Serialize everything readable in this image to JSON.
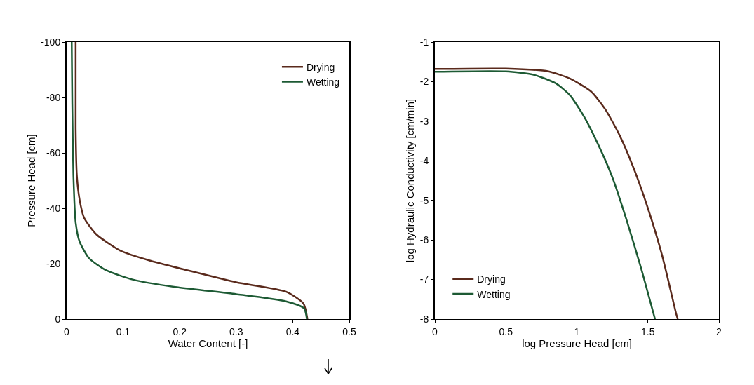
{
  "chart_data": [
    {
      "type": "line",
      "xlabel": "Water Content [-]",
      "ylabel": "Pressure Head [cm]",
      "xlim": [
        0,
        0.5
      ],
      "xticks": [
        0,
        0.1,
        0.2,
        0.3,
        0.4,
        0.5
      ],
      "ylim": [
        0,
        -100
      ],
      "yticks": [
        0,
        -20,
        -40,
        -60,
        -80,
        -100
      ],
      "grid": false,
      "legend": "top right",
      "series": [
        {
          "name": "Drying",
          "color": "#5a2a1c",
          "x": [
            0.426,
            0.419,
            0.388,
            0.3,
            0.214,
            0.149,
            0.097,
            0.053,
            0.031,
            0.023,
            0.018,
            0.016,
            0.016
          ],
          "values": [
            0,
            -5.6,
            -9.9,
            -13.3,
            -17.6,
            -21,
            -24.5,
            -30.5,
            -36.5,
            -43,
            -52,
            -69,
            -100
          ]
        },
        {
          "name": "Wetting",
          "color": "#1d5a34",
          "x": [
            0.425,
            0.42,
            0.388,
            0.3,
            0.192,
            0.118,
            0.07,
            0.04,
            0.023,
            0.016,
            0.012,
            0.01,
            0.009
          ],
          "values": [
            0,
            -3.9,
            -6.4,
            -9,
            -11.6,
            -14.2,
            -17.6,
            -21.9,
            -27.9,
            -34.8,
            -52,
            -77.7,
            -100
          ]
        }
      ]
    },
    {
      "type": "line",
      "xlabel": "log Pressure Head [cm]",
      "ylabel": "log Hydraulic Conductivity [cm/min]",
      "xlim": [
        0,
        2
      ],
      "xticks": [
        0,
        0.5,
        1,
        1.5,
        2
      ],
      "ylim": [
        -8,
        -1
      ],
      "yticks": [
        -8,
        -7,
        -6,
        -5,
        -4,
        -3,
        -2,
        -1
      ],
      "grid": false,
      "legend": "bottom left",
      "series": [
        {
          "name": "Drying",
          "color": "#5a2a1c",
          "x": [
            0,
            0.5,
            0.8,
            0.95,
            1.1,
            1.2,
            1.3,
            1.4,
            1.5,
            1.6,
            1.7,
            1.71
          ],
          "values": [
            -1.68,
            -1.67,
            -1.74,
            -1.92,
            -2.25,
            -2.7,
            -3.35,
            -4.19,
            -5.2,
            -6.39,
            -7.88,
            -8
          ]
        },
        {
          "name": "Wetting",
          "color": "#1d5a34",
          "x": [
            0,
            0.5,
            0.7,
            0.85,
            0.95,
            1.05,
            1.15,
            1.25,
            1.35,
            1.45,
            1.55
          ],
          "values": [
            -1.75,
            -1.74,
            -1.83,
            -2.04,
            -2.34,
            -2.88,
            -3.59,
            -4.42,
            -5.5,
            -6.69,
            -8
          ]
        }
      ]
    }
  ]
}
